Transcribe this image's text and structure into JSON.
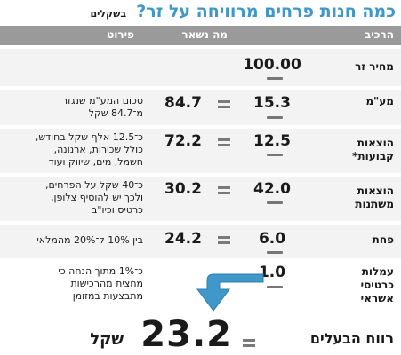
{
  "title": {
    "main": "כמה חנות פרחים מרוויחה על זר?",
    "sub": "בשקלים"
  },
  "headers": {
    "component": "הרכיב",
    "remaining": "מה נשאר",
    "details": "פירוט"
  },
  "rows": [
    {
      "component": "מחיר זר",
      "paid": "100.00",
      "left": "",
      "details": []
    },
    {
      "component": "מע\"מ",
      "paid": "15.3",
      "left": "84.7",
      "details": [
        "סכום המע\"מ שנגזר",
        "מ־84.7 שקל"
      ]
    },
    {
      "component": "הוצאות קבועות*",
      "paid": "12.5",
      "left": "72.2",
      "details": [
        "כ־12.5 אלף שקל בחודש,",
        "כולל שכירות, ארנונה,",
        "חשמל, מים, שיווק ועוד"
      ]
    },
    {
      "component": "הוצאות משתנות",
      "paid": "42.0",
      "left": "30.2",
      "details": [
        "כ־40 שקל על הפרחים,",
        "ולכך יש להוסיף צלופן,",
        "כרטיס וכיו\"ב"
      ]
    },
    {
      "component": "פחת",
      "paid": "6.0",
      "left": "24.2",
      "details": [
        "בין 10% ל־20% מהמלאי"
      ]
    },
    {
      "component": "עמלות כרטיסי אשראי",
      "paid": "1.0",
      "left": "",
      "details": [
        "כ־1% מתוך הנחה כי",
        "מחצית מהרכישות",
        "מתבצעות במזומן"
      ]
    }
  ],
  "profit": {
    "label": "רווח הבעלים",
    "value": "23.2",
    "unit": "שקל"
  },
  "colors": {
    "title": "#3f98c9",
    "header_bg": "#9a9a9a",
    "row_bg": "#f3f3f3",
    "arrow": "#3f98c9"
  }
}
